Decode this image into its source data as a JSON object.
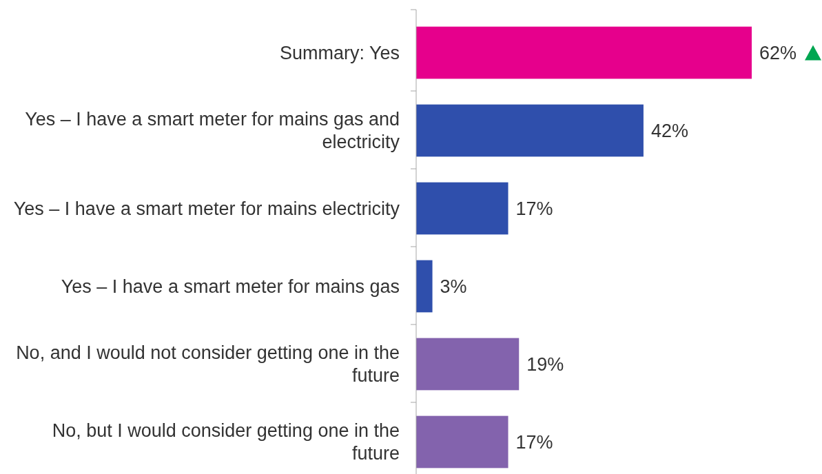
{
  "chart_data": {
    "type": "bar",
    "orientation": "horizontal",
    "categories": [
      "Summary: Yes",
      "Yes – I have a smart meter for mains gas and electricity",
      "Yes – I have a smart meter for mains electricity",
      "Yes – I have a smart meter for mains gas",
      "No, and I would not consider getting one in the future",
      "No, but I would consider getting one in the future"
    ],
    "values": [
      62,
      42,
      17,
      3,
      19,
      17
    ],
    "colors": [
      "#e6008c",
      "#2f4fac",
      "#2f4fac",
      "#2f4fac",
      "#8363ad",
      "#8363ad"
    ],
    "value_labels": [
      "62%",
      "42%",
      "17%",
      "3%",
      "19%",
      "17%"
    ]
  }
}
